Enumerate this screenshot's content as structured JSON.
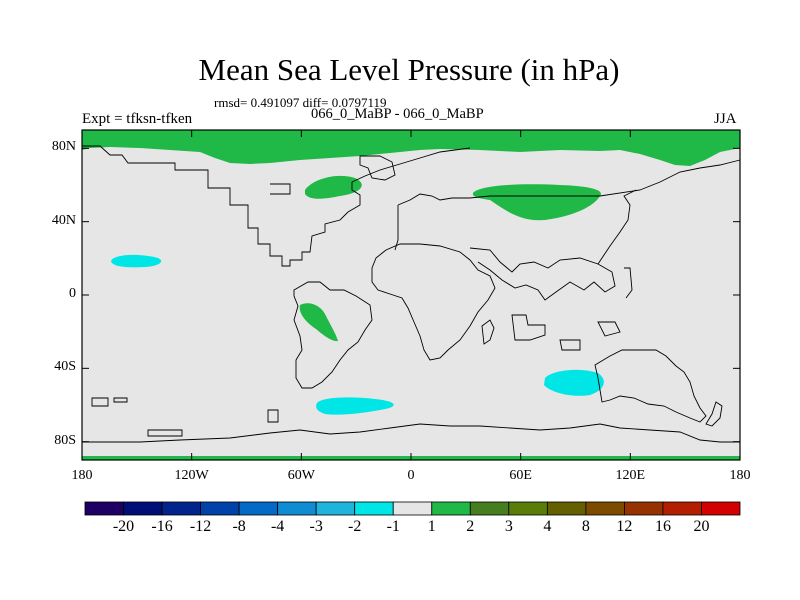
{
  "title": "Mean Sea Level Pressure (in hPa)",
  "stats": "rmsd= 0.491097 diff= 0.0797119",
  "left_label": "Expt = tfksn-tfken",
  "center_label": "066_0_MaBP - 066_0_MaBP",
  "right_label": "JJA",
  "map": {
    "projection": "cylindrical-equidistant",
    "lon_range": [
      -180,
      180
    ],
    "lat_range": [
      -90,
      90
    ],
    "x_ticks": [
      {
        "lon": -180,
        "label": "180"
      },
      {
        "lon": -120,
        "label": "120W"
      },
      {
        "lon": -60,
        "label": "60W"
      },
      {
        "lon": 0,
        "label": "0"
      },
      {
        "lon": 60,
        "label": "60E"
      },
      {
        "lon": 120,
        "label": "120E"
      },
      {
        "lon": 180,
        "label": "180"
      }
    ],
    "y_ticks": [
      {
        "lat": 80,
        "label": "80N"
      },
      {
        "lat": 40,
        "label": "40N"
      },
      {
        "lat": 0,
        "label": "0"
      },
      {
        "lat": -40,
        "label": "40S"
      },
      {
        "lat": -80,
        "label": "80S"
      }
    ],
    "background_color": "#e6e6e6"
  },
  "colorbar": {
    "colors": [
      "#1e0064",
      "#000f78",
      "#00238c",
      "#0041aa",
      "#0569c8",
      "#0f8cd2",
      "#1eb4dc",
      "#00e6e6",
      "#e6e6e6",
      "#20b846",
      "#467d1e",
      "#5a7d0a",
      "#645f00",
      "#7d4b00",
      "#963200",
      "#b41e00",
      "#d20000"
    ],
    "labels": [
      "-20",
      "-16",
      "-12",
      "-8",
      "-4",
      "-3",
      "-2",
      "-1",
      "1",
      "2",
      "3",
      "4",
      "8",
      "12",
      "16",
      "20"
    ]
  }
}
